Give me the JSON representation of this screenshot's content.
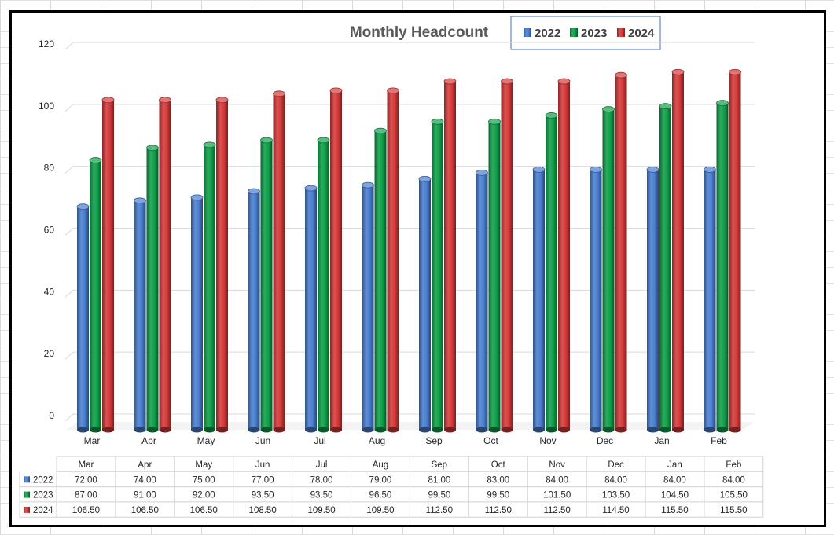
{
  "chart_data": {
    "type": "bar",
    "title": "Monthly Headcount",
    "categories": [
      "Mar",
      "Apr",
      "May",
      "Jun",
      "Jul",
      "Aug",
      "Sep",
      "Oct",
      "Nov",
      "Dec",
      "Jan",
      "Feb"
    ],
    "series": [
      {
        "name": "2022",
        "color": "#4a7fd0",
        "values": [
          72,
          74,
          75,
          77,
          78,
          79,
          81,
          83,
          84,
          84,
          84,
          84
        ],
        "labels": [
          "72.00",
          "74.00",
          "75.00",
          "77.00",
          "78.00",
          "79.00",
          "81.00",
          "83.00",
          "84.00",
          "84.00",
          "84.00",
          "84.00"
        ]
      },
      {
        "name": "2023",
        "color": "#10a04a",
        "values": [
          87,
          91,
          92,
          93.5,
          93.5,
          96.5,
          99.5,
          99.5,
          101.5,
          103.5,
          104.5,
          105.5
        ],
        "labels": [
          "87.00",
          "91.00",
          "92.00",
          "93.50",
          "93.50",
          "96.50",
          "99.50",
          "99.50",
          "101.50",
          "103.50",
          "104.50",
          "105.50"
        ]
      },
      {
        "name": "2024",
        "color": "#d63a3a",
        "values": [
          106.5,
          106.5,
          106.5,
          108.5,
          109.5,
          109.5,
          112.5,
          112.5,
          112.5,
          114.5,
          115.5,
          115.5
        ],
        "labels": [
          "106.50",
          "106.50",
          "106.50",
          "108.50",
          "109.50",
          "109.50",
          "112.50",
          "112.50",
          "112.50",
          "114.50",
          "115.50",
          "115.50"
        ]
      }
    ],
    "yticks": [
      "0",
      "20",
      "40",
      "60",
      "80",
      "100",
      "120"
    ],
    "ylim": [
      0,
      120
    ],
    "grid": true,
    "legend_position": "top-right",
    "data_table": true
  }
}
